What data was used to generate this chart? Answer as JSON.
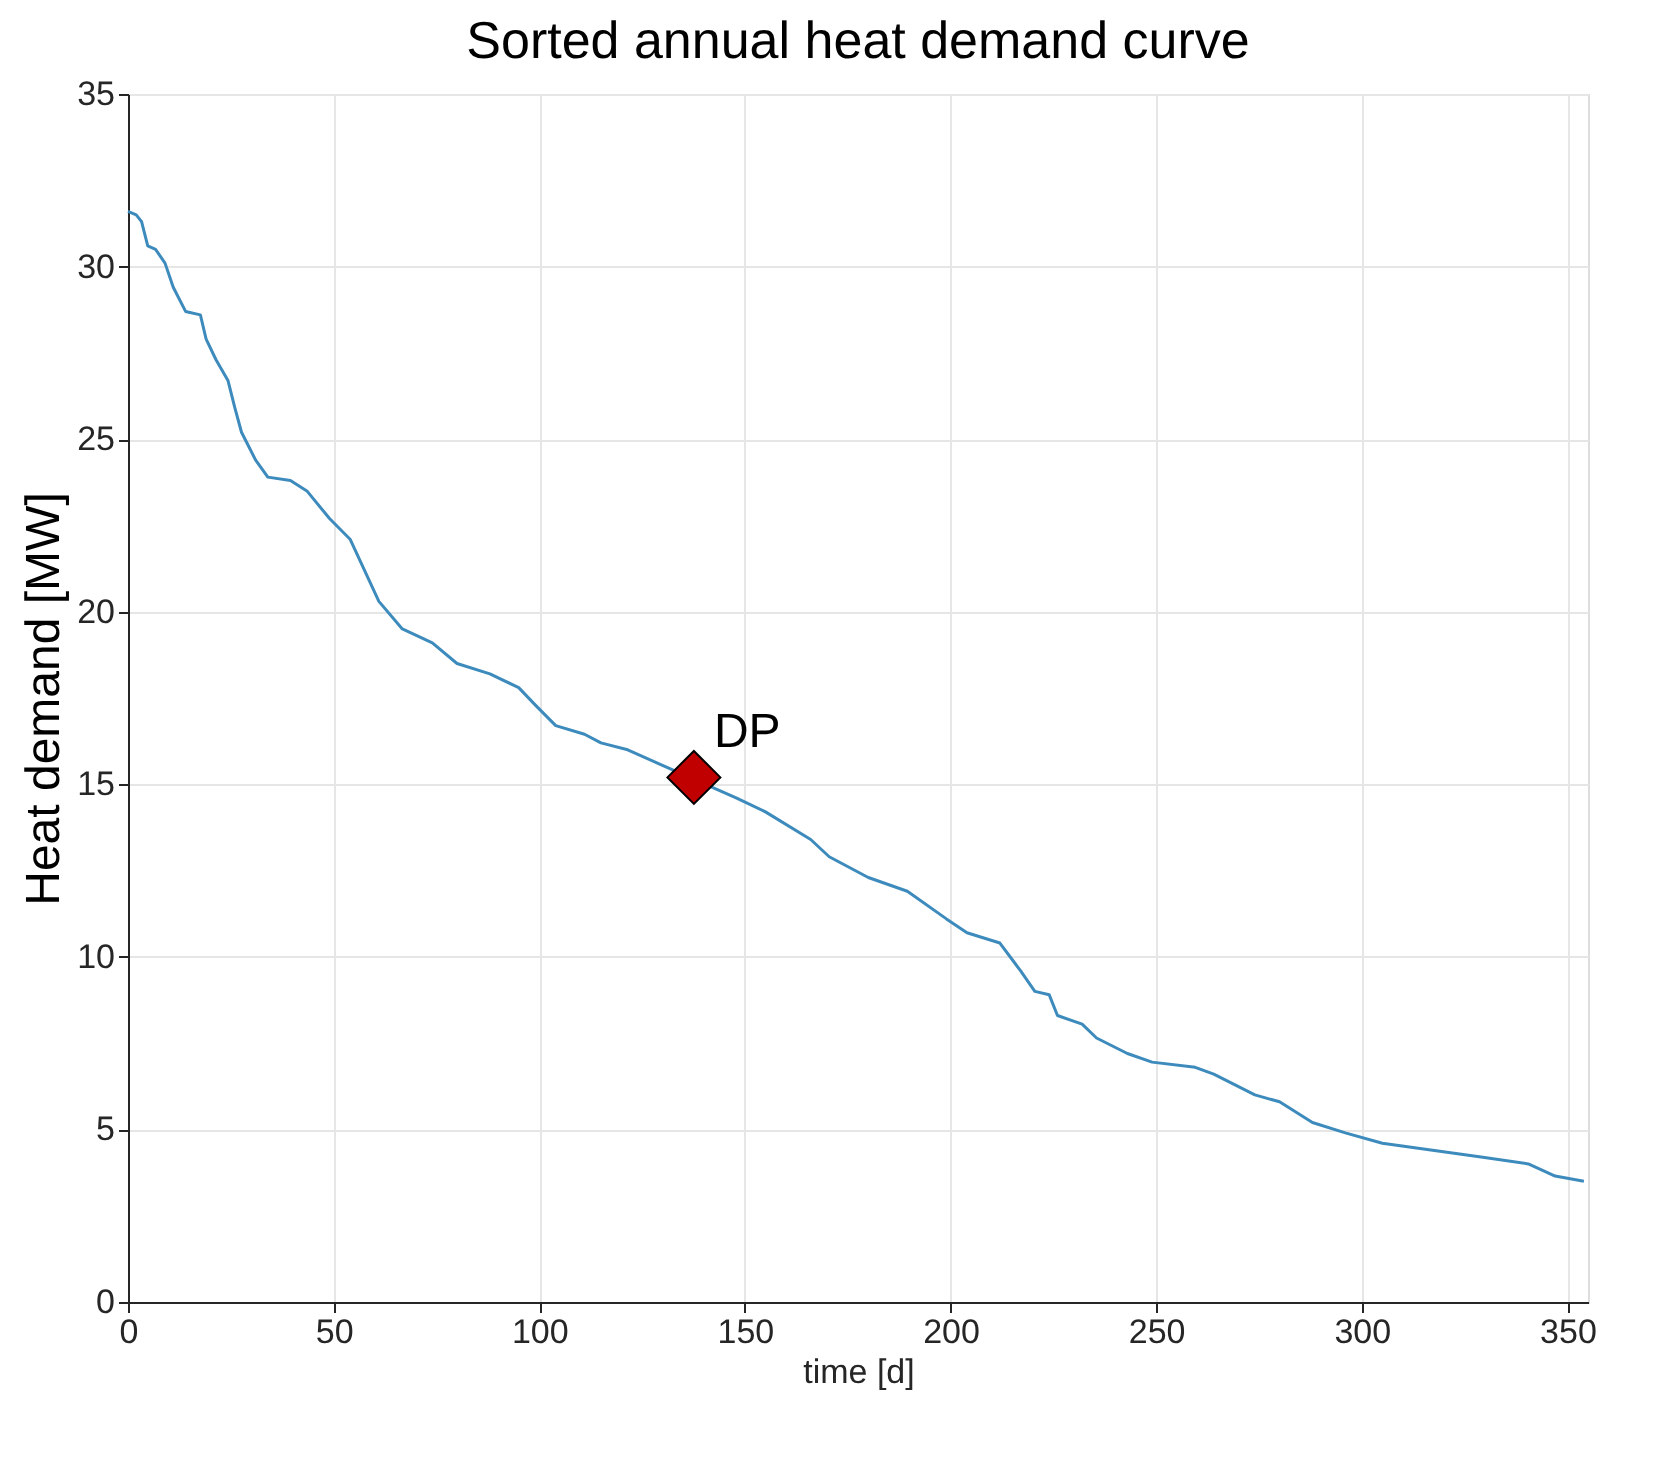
{
  "chart_data": {
    "type": "line",
    "title": "Sorted annual heat demand curve",
    "xlabel": "time [d]",
    "ylabel": "Heat demand [MW]",
    "xlim": [
      0,
      355
    ],
    "xticks": [
      0,
      50,
      100,
      150,
      200,
      250,
      300,
      350
    ],
    "ylim": [
      0,
      35
    ],
    "yticks": [
      0,
      5,
      10,
      15,
      20,
      25,
      30,
      35
    ],
    "grid": true,
    "series": [
      {
        "color": "#3d8bbd",
        "x": [
          0,
          2,
          3.3,
          4.8,
          6.7,
          9,
          11,
          14,
          17.6,
          19,
          21.4,
          24.3,
          26,
          27.6,
          31,
          34,
          39.5,
          43.5,
          49,
          54,
          61,
          66.7,
          74,
          80,
          88,
          95,
          99,
          104,
          111,
          115,
          121.5,
          129,
          148,
          155,
          166,
          170.5,
          180,
          189.5,
          199,
          204,
          212,
          217,
          220.5,
          224,
          226,
          232,
          235.5,
          243,
          249,
          259.5,
          264,
          274,
          280,
          288,
          296,
          305,
          329,
          340.5,
          347,
          354
        ],
        "values": [
          31.6,
          31.5,
          31.3,
          30.6,
          30.5,
          30.1,
          29.4,
          28.7,
          28.6,
          27.9,
          27.3,
          26.7,
          25.9,
          25.2,
          24.4,
          23.9,
          23.8,
          23.5,
          22.7,
          22.1,
          20.3,
          19.5,
          19.1,
          18.5,
          18.2,
          17.8,
          17.3,
          16.7,
          16.45,
          16.2,
          16.0,
          15.6,
          14.6,
          14.2,
          13.4,
          12.9,
          12.3,
          11.9,
          11.1,
          10.7,
          10.4,
          9.6,
          9.0,
          8.9,
          8.3,
          8.05,
          7.65,
          7.2,
          6.95,
          6.8,
          6.6,
          6.0,
          5.8,
          5.2,
          4.9,
          4.6,
          4.2,
          4.0,
          3.65,
          3.5
        ]
      },
      {
        "type": "scatter",
        "name": "DP",
        "color": "#c00000",
        "marker": "diamond",
        "x": [
          137.6
        ],
        "values": [
          15.2
        ]
      }
    ]
  }
}
